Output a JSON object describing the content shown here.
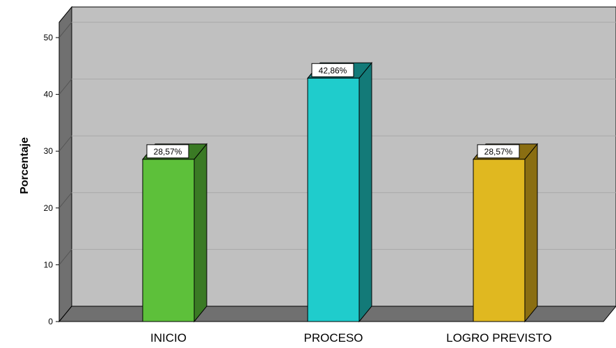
{
  "chart_data": {
    "type": "bar",
    "categories": [
      "INICIO",
      "PROCESO",
      "LOGRO PREVISTO"
    ],
    "values": [
      28.57,
      42.86,
      28.57
    ],
    "data_labels": [
      "28,57%",
      "42,86%",
      "28,57%"
    ],
    "colors": [
      "#5dc03a",
      "#1fcccc",
      "#e0b820"
    ],
    "side_colors": [
      "#3a7a24",
      "#137a78",
      "#8a6e12"
    ],
    "ylabel": "Porcentaje",
    "xlabel": "",
    "ylim": [
      0,
      50
    ],
    "yticks": [
      "0",
      "10",
      "20",
      "30",
      "40",
      "50"
    ],
    "grid": true,
    "style": "3d",
    "background_color": "#c0c0c0"
  }
}
